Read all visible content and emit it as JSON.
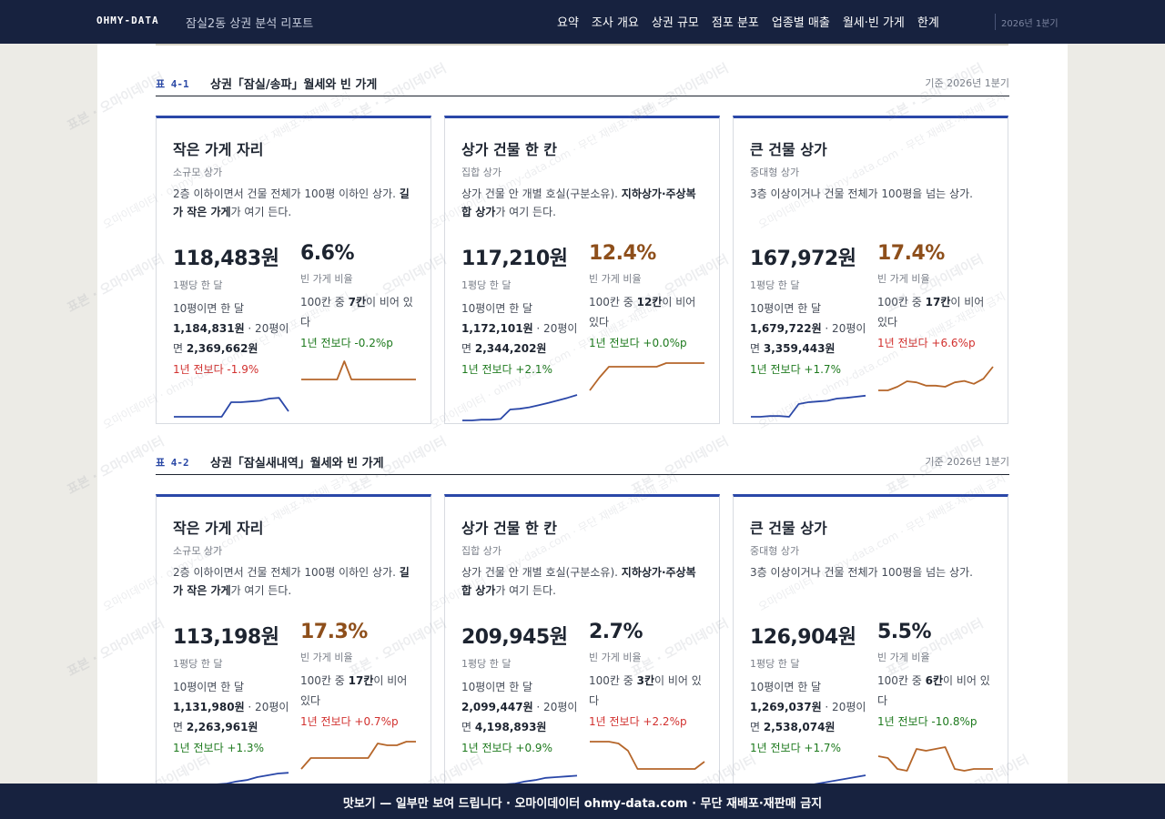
{
  "header": {
    "brand": "OHMY-DATA",
    "report_title": "잠실2동 상권 분석 리포트",
    "nav": [
      "요약",
      "조사 개요",
      "상권 규모",
      "점포 분포",
      "업종별 매출",
      "월세·빈 가게",
      "한계"
    ],
    "period": "2026년 1분기"
  },
  "sections": [
    {
      "no": "표 4-1",
      "title": "상권「잠실/송파」월세와 빈 가게",
      "base": "기준 2026년 1분기",
      "cards": [
        {
          "title": "작은 가게 자리",
          "subtitle": "소규모 상가",
          "desc_a": "2층 이하이면서 건물 전체가 100평 이하인 상가. ",
          "desc_b": "길가 작은 가게",
          "desc_c": "가 여기 든다.",
          "rent": "118,483원",
          "rent_label": "1평당 한 달",
          "rent_pre": "10평이면 한 달 ",
          "rent_10": "1,184,831원",
          "rent_mid": " · 20평이면 ",
          "rent_20": "2,369,662원",
          "rent_change": "1년 전보다 -1.9%",
          "rent_change_dir": "up",
          "vacancy": "6.6%",
          "vacancy_hot": false,
          "vac_label": "빈 가게 비율",
          "vac_pre": "100칸 중 ",
          "vac_count": "7칸",
          "vac_post": "이 비어 있다",
          "vac_change": "1년 전보다 -0.2%p",
          "vac_change_dir": "down",
          "rent_trend": [
            0.2,
            0.2,
            0.2,
            0.2,
            0.2,
            0.2,
            0.6,
            0.6,
            0.62,
            0.64,
            0.7,
            0.72,
            0.35
          ],
          "vac_trend": [
            0.5,
            0.5,
            0.5,
            0.5,
            0.5,
            0.5,
            1.0,
            0.5,
            0.5,
            0.5,
            0.5,
            0.5,
            0.5,
            0.5,
            0.5,
            0.5,
            0.5
          ]
        },
        {
          "title": "상가 건물 한 칸",
          "subtitle": "집합 상가",
          "desc_a": "상가 건물 안 개별 호실(구분소유). ",
          "desc_b": "지하상가·주상복합 상가",
          "desc_c": "가 여기 든다.",
          "rent": "117,210원",
          "rent_label": "1평당 한 달",
          "rent_pre": "10평이면 한 달 ",
          "rent_10": "1,172,101원",
          "rent_mid": " · 20평이면 ",
          "rent_20": "2,344,202원",
          "rent_change": "1년 전보다 +2.1%",
          "rent_change_dir": "down",
          "vacancy": "12.4%",
          "vacancy_hot": true,
          "vac_label": "빈 가게 비율",
          "vac_pre": "100칸 중 ",
          "vac_count": "12칸",
          "vac_post": "이 비어 있다",
          "vac_change": "1년 전보다 +0.0%p",
          "vac_change_dir": "down",
          "rent_trend": [
            0.1,
            0.1,
            0.12,
            0.12,
            0.14,
            0.4,
            0.42,
            0.46,
            0.52,
            0.58,
            0.65,
            0.72,
            0.8
          ],
          "vac_trend": [
            0.2,
            0.55,
            0.85,
            0.85,
            0.85,
            0.85,
            0.85,
            0.85,
            0.95,
            0.95,
            0.95,
            0.95,
            0.95
          ]
        },
        {
          "title": "큰 건물 상가",
          "subtitle": "중대형 상가",
          "desc_a": "3층 이상이거나 건물 전체가 100평을 넘는 상가.",
          "desc_b": "",
          "desc_c": "",
          "rent": "167,972원",
          "rent_label": "1평당 한 달",
          "rent_pre": "10평이면 한 달 ",
          "rent_10": "1,679,722원",
          "rent_mid": " · 20평이면 ",
          "rent_20": "3,359,443원",
          "rent_change": "1년 전보다 +1.7%",
          "rent_change_dir": "down",
          "vacancy": "17.4%",
          "vacancy_hot": true,
          "vac_label": "빈 가게 비율",
          "vac_pre": "100칸 중 ",
          "vac_count": "17칸",
          "vac_post": "이 비어 있다",
          "vac_change": "1년 전보다 +6.6%p",
          "vac_change_dir": "up",
          "rent_trend": [
            0.2,
            0.2,
            0.22,
            0.22,
            0.2,
            0.55,
            0.6,
            0.62,
            0.64,
            0.7,
            0.72,
            0.75,
            0.78
          ],
          "vac_trend": [
            0.2,
            0.2,
            0.3,
            0.45,
            0.42,
            0.33,
            0.33,
            0.3,
            0.42,
            0.46,
            0.38,
            0.52,
            0.85
          ]
        }
      ]
    },
    {
      "no": "표 4-2",
      "title": "상권「잠실새내역」월세와 빈 가게",
      "base": "기준 2026년 1분기",
      "cards": [
        {
          "title": "작은 가게 자리",
          "subtitle": "소규모 상가",
          "desc_a": "2층 이하이면서 건물 전체가 100평 이하인 상가. ",
          "desc_b": "길가 작은 가게",
          "desc_c": "가 여기 든다.",
          "rent": "113,198원",
          "rent_label": "1평당 한 달",
          "rent_pre": "10평이면 한 달 ",
          "rent_10": "1,131,980원",
          "rent_mid": " · 20평이면 ",
          "rent_20": "2,263,961원",
          "rent_change": "1년 전보다 +1.3%",
          "rent_change_dir": "down",
          "vacancy": "17.3%",
          "vacancy_hot": true,
          "vac_label": "빈 가게 비율",
          "vac_pre": "100칸 중 ",
          "vac_count": "17칸",
          "vac_post": "이 비어 있다",
          "vac_change": "1년 전보다 +0.7%p",
          "vac_change_dir": "up",
          "rent_trend": [
            0.05,
            0.0,
            0.05,
            0.15,
            0.5,
            0.52,
            0.58,
            0.62,
            0.7,
            0.75,
            0.8,
            0.82
          ],
          "vac_trend": [
            0.2,
            0.5,
            0.5,
            0.5,
            0.5,
            0.5,
            0.5,
            0.5,
            0.9,
            0.85,
            0.85,
            0.95,
            0.95
          ]
        },
        {
          "title": "상가 건물 한 칸",
          "subtitle": "집합 상가",
          "desc_a": "상가 건물 안 개별 호실(구분소유). ",
          "desc_b": "지하상가·주상복합 상가",
          "desc_c": "가 여기 든다.",
          "rent": "209,945원",
          "rent_label": "1평당 한 달",
          "rent_pre": "10평이면 한 달 ",
          "rent_10": "2,099,447원",
          "rent_mid": " · 20평이면 ",
          "rent_20": "4,198,893원",
          "rent_change": "1년 전보다 +0.9%",
          "rent_change_dir": "down",
          "vacancy": "2.7%",
          "vacancy_hot": false,
          "vac_label": "빈 가게 비율",
          "vac_pre": "100칸 중 ",
          "vac_count": "3칸",
          "vac_post": "이 비어 있다",
          "vac_change": "1년 전보다 +2.2%p",
          "vac_change_dir": "up",
          "rent_trend": [
            0.05,
            0.05,
            0.08,
            0.15,
            0.5,
            0.52,
            0.58,
            0.62,
            0.68,
            0.7,
            0.72,
            0.74
          ],
          "vac_trend": [
            0.95,
            0.95,
            0.95,
            0.9,
            0.7,
            0.2,
            0.2,
            0.2,
            0.2,
            0.2,
            0.2,
            0.2,
            0.4
          ]
        },
        {
          "title": "큰 건물 상가",
          "subtitle": "중대형 상가",
          "desc_a": "3층 이상이거나 건물 전체가 100평을 넘는 상가.",
          "desc_b": "",
          "desc_c": "",
          "rent": "126,904원",
          "rent_label": "1평당 한 달",
          "rent_pre": "10평이면 한 달 ",
          "rent_10": "1,269,037원",
          "rent_mid": " · 20평이면 ",
          "rent_20": "2,538,074원",
          "rent_change": "1년 전보다 +1.7%",
          "rent_change_dir": "down",
          "vacancy": "5.5%",
          "vacancy_hot": false,
          "vac_label": "빈 가게 비율",
          "vac_pre": "100칸 중 ",
          "vac_count": "6칸",
          "vac_post": "이 비어 있다",
          "vac_change": "1년 전보다 -10.8%p",
          "vac_change_dir": "down",
          "rent_trend": [
            0.0,
            0.02,
            0.05,
            0.1,
            0.4,
            0.45,
            0.5,
            0.55,
            0.6,
            0.65,
            0.7,
            0.75
          ],
          "vac_trend": [
            0.55,
            0.5,
            0.2,
            0.15,
            0.75,
            0.7,
            0.75,
            0.8,
            0.2,
            0.15,
            0.2,
            0.2,
            0.2
          ]
        }
      ]
    }
  ],
  "watermark_main": "표본 · 오마이데이터",
  "watermark_sub": "오마이데이터 · ohmy-data.com · 무단 재배포·재판매 금지",
  "footer": "맛보기 — 일부만 보여 드립니다 · 오마이데이터 ohmy-data.com · 무단 재배포·재판매 금지",
  "colors": {
    "rent_line": "#2a47a8",
    "vac_line": "#b5662a",
    "up": "#d2312f",
    "down": "#1e7a1e"
  }
}
